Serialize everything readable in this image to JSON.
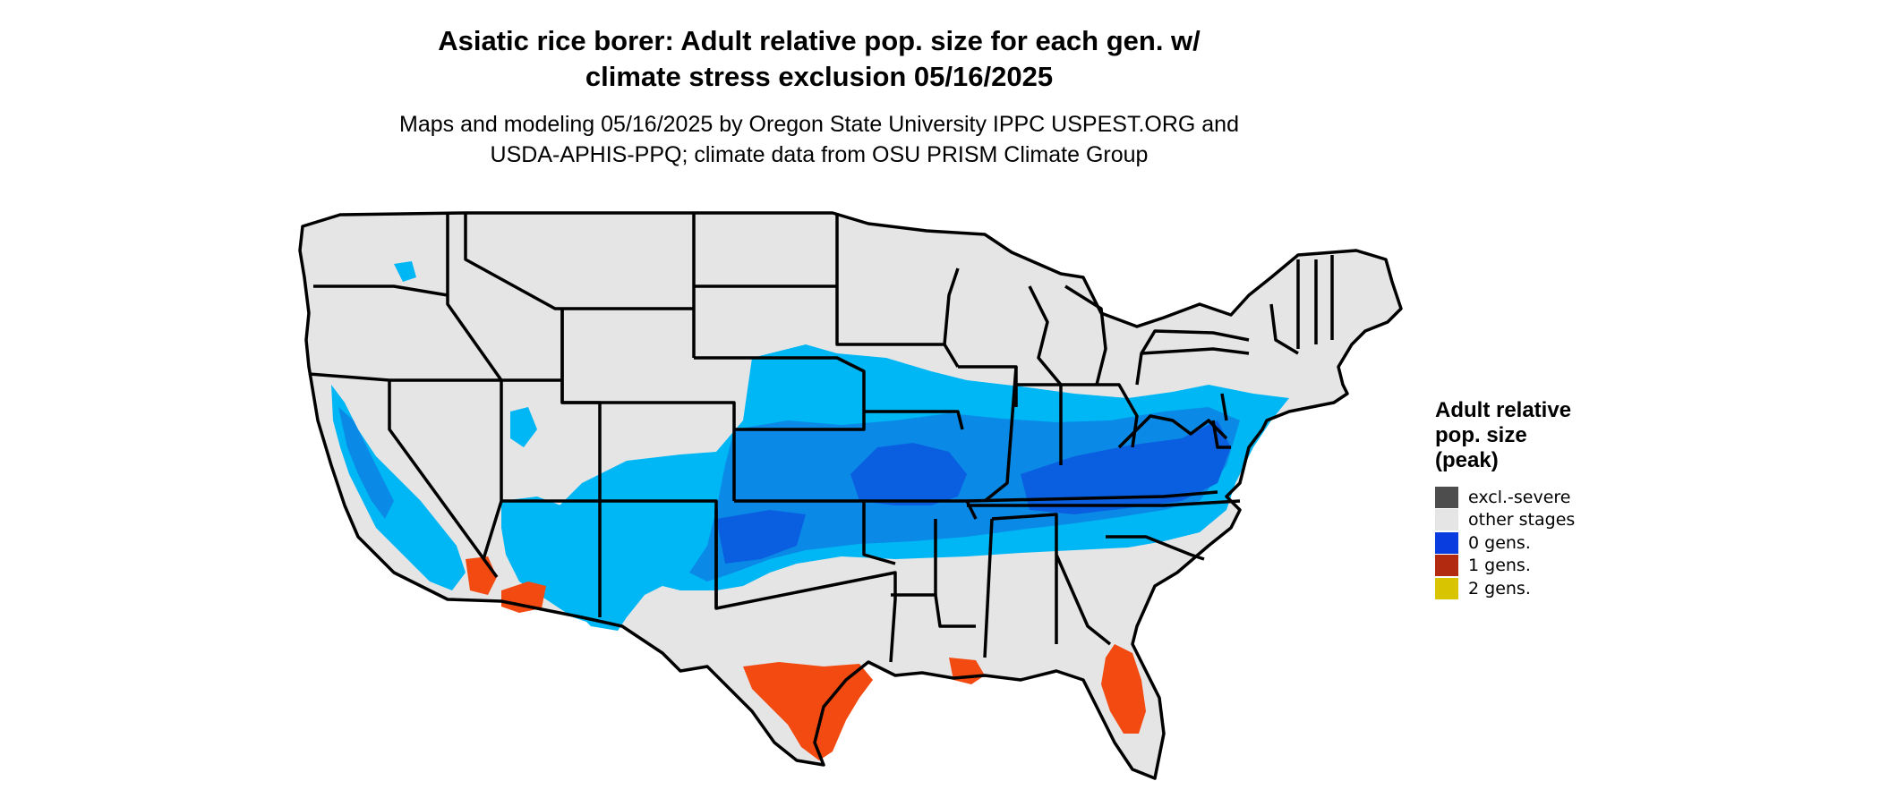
{
  "title": {
    "line1": "Asiatic rice borer: Adult relative pop. size for each gen. w/",
    "line2": "climate stress exclusion 05/16/2025"
  },
  "subtitle": {
    "line1": "Maps and modeling 05/16/2025 by Oregon State University IPPC USPEST.ORG and",
    "line2": "USDA-APHIS-PPQ; climate data from OSU PRISM Climate Group"
  },
  "legend": {
    "title_line1": "Adult relative",
    "title_line2": "pop. size",
    "title_line3": "(peak)",
    "items": [
      {
        "label": "excl.-severe",
        "color": "#4d4d4d"
      },
      {
        "label": "other stages",
        "color": "#e5e5e5"
      },
      {
        "label": "0 gens.",
        "color": "#0a3de0"
      },
      {
        "label": "1 gens.",
        "color": "#b22a10"
      },
      {
        "label": "2 gens.",
        "color": "#d8c400"
      }
    ]
  },
  "map_colors": {
    "land": "#e5e5e5",
    "light_blue": "#00b7f5",
    "mid_blue": "#0a8ae6",
    "dark_blue": "#0a5fe0",
    "orange_red": "#f24a10",
    "border": "#000000"
  }
}
